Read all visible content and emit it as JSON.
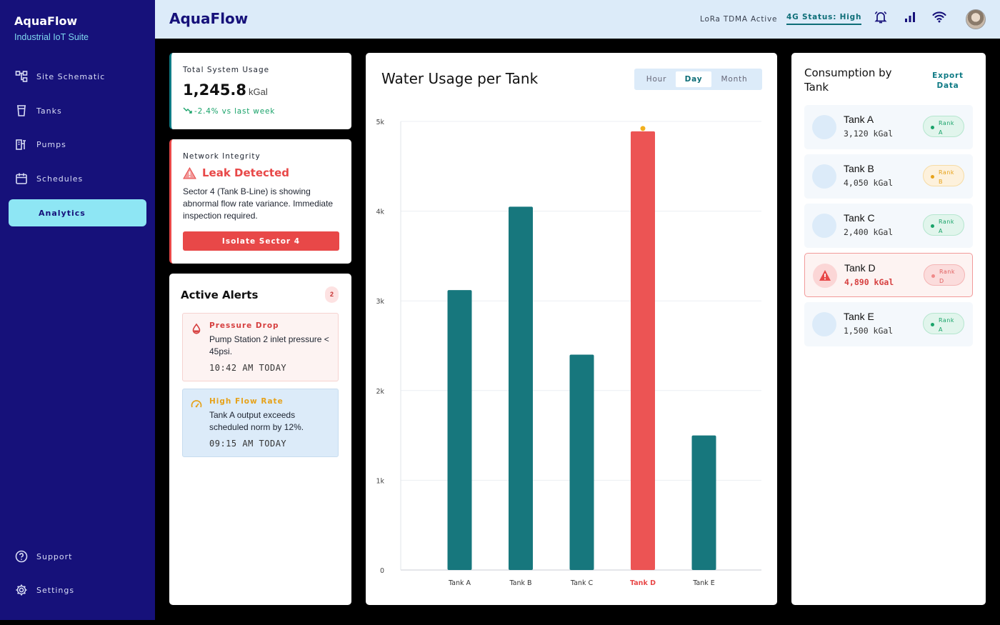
{
  "brand": {
    "title": "AquaFlow",
    "subtitle": "Industrial IoT Suite"
  },
  "nav": {
    "items": [
      {
        "label": "Site Schematic",
        "icon": "schematic-icon"
      },
      {
        "label": "Tanks",
        "icon": "tank-icon"
      },
      {
        "label": "Pumps",
        "icon": "pump-icon"
      },
      {
        "label": "Schedules",
        "icon": "calendar-icon"
      },
      {
        "label": "Analytics",
        "icon": "analytics-icon",
        "active": true
      }
    ],
    "support": "Support",
    "settings": "Settings"
  },
  "header": {
    "title": "AquaFlow",
    "lora": "LoRa TDMA Active",
    "status_4g": "4G Status: High"
  },
  "usage": {
    "label": "Total System Usage",
    "value": "1,245.8",
    "unit": "kGal",
    "trend": "-2.4% vs last week"
  },
  "network": {
    "label": "Network Integrity",
    "title": "Leak Detected",
    "description": "Sector 4 (Tank B-Line) is showing abnormal flow rate variance. Immediate inspection required.",
    "action": "Isolate Sector 4"
  },
  "alerts": {
    "title": "Active Alerts",
    "count": "2",
    "items": [
      {
        "title": "Pressure Drop",
        "description": "Pump Station 2 inlet pressure < 45psi.",
        "time": "10:42 AM TODAY"
      },
      {
        "title": "High Flow Rate",
        "description": "Tank A output exceeds scheduled norm by 12%.",
        "time": "09:15 AM TODAY"
      }
    ]
  },
  "chart": {
    "title": "Water Usage per Tank",
    "range_options": [
      "Hour",
      "Day",
      "Month"
    ],
    "selected_range": "Day"
  },
  "chart_data": {
    "type": "bar",
    "title": "Water Usage per Tank",
    "categories": [
      "Tank A",
      "Tank B",
      "Tank C",
      "Tank D",
      "Tank E"
    ],
    "values": [
      3120,
      4050,
      2400,
      4890,
      1500
    ],
    "ylim": [
      0,
      5000
    ],
    "yticks": [
      0,
      1000,
      2000,
      3000,
      4000,
      5000
    ],
    "ytick_labels": [
      "0",
      "1k",
      "2k",
      "3k",
      "4k",
      "5k"
    ],
    "highlight": "Tank D",
    "colors": {
      "bar": "#17777d",
      "highlight": "#ec5454"
    },
    "grid": true,
    "legend": "none"
  },
  "consumption": {
    "title": "Consumption by Tank",
    "export": "Export Data",
    "tanks": [
      {
        "name": "Tank A",
        "value": "3,120 kGal",
        "rank_word": "Rank",
        "rank": "A"
      },
      {
        "name": "Tank B",
        "value": "4,050 kGal",
        "rank_word": "Rank",
        "rank": "B"
      },
      {
        "name": "Tank C",
        "value": "2,400 kGal",
        "rank_word": "Rank",
        "rank": "A"
      },
      {
        "name": "Tank D",
        "value": "4,890 kGal",
        "rank_word": "Rank",
        "rank": "D",
        "alert": true
      },
      {
        "name": "Tank E",
        "value": "1,500 kGal",
        "rank_word": "Rank",
        "rank": "A"
      }
    ]
  }
}
